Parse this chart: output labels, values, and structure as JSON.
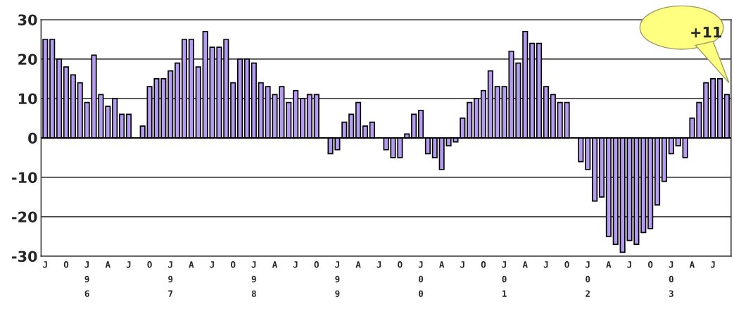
{
  "chart_data": {
    "type": "bar",
    "categories": [
      "J",
      null,
      null,
      "O",
      null,
      null,
      "J\n9\n6",
      null,
      null,
      "A",
      null,
      null,
      "J",
      null,
      null,
      "O",
      null,
      null,
      "J\n9\n7",
      null,
      null,
      "A",
      null,
      null,
      "J",
      null,
      null,
      "O",
      null,
      null,
      "J\n9\n8",
      null,
      null,
      "A",
      null,
      null,
      "J",
      null,
      null,
      "O",
      null,
      null,
      "J\n9\n9",
      null,
      null,
      "A",
      null,
      null,
      "J",
      null,
      null,
      "O",
      null,
      null,
      "J\n0\n0",
      null,
      null,
      "A",
      null,
      null,
      "J",
      null,
      null,
      "O",
      null,
      null,
      "J\n0\n1",
      null,
      null,
      "A",
      null,
      null,
      "J",
      null,
      null,
      "O",
      null,
      null,
      "J\n0\n2",
      null,
      null,
      "A",
      null,
      null,
      "J",
      null,
      null,
      "O",
      null,
      null,
      "J\n0\n3",
      null,
      null,
      "A",
      null,
      null,
      "J",
      null,
      null
    ],
    "values": [
      25,
      25,
      20,
      18,
      16,
      14,
      9,
      21,
      11,
      8,
      10,
      6,
      6,
      null,
      3,
      13,
      15,
      15,
      17,
      19,
      25,
      25,
      18,
      27,
      23,
      23,
      25,
      14,
      20,
      20,
      19,
      14,
      13,
      11,
      13,
      9,
      12,
      10,
      11,
      11,
      null,
      -4,
      -3,
      4,
      6,
      9,
      3,
      4,
      null,
      -3,
      -5,
      -5,
      1,
      6,
      7,
      -4,
      -5,
      -8,
      -2,
      -1,
      5,
      9,
      10,
      12,
      17,
      13,
      13,
      22,
      19,
      27,
      24,
      24,
      13,
      11,
      9,
      9,
      null,
      -6,
      -8,
      -16,
      -15,
      -25,
      -27,
      -29,
      -26,
      -27,
      -24,
      -23,
      -17,
      -11,
      -4,
      -2,
      -5,
      5,
      9,
      14,
      15,
      15,
      11
    ],
    "color": "#b59cf0",
    "ylim": [
      -30,
      30
    ],
    "yticks": [
      -30,
      -20,
      -10,
      0,
      10,
      20,
      30
    ],
    "grid": "y",
    "annotations": [
      "+11"
    ]
  }
}
